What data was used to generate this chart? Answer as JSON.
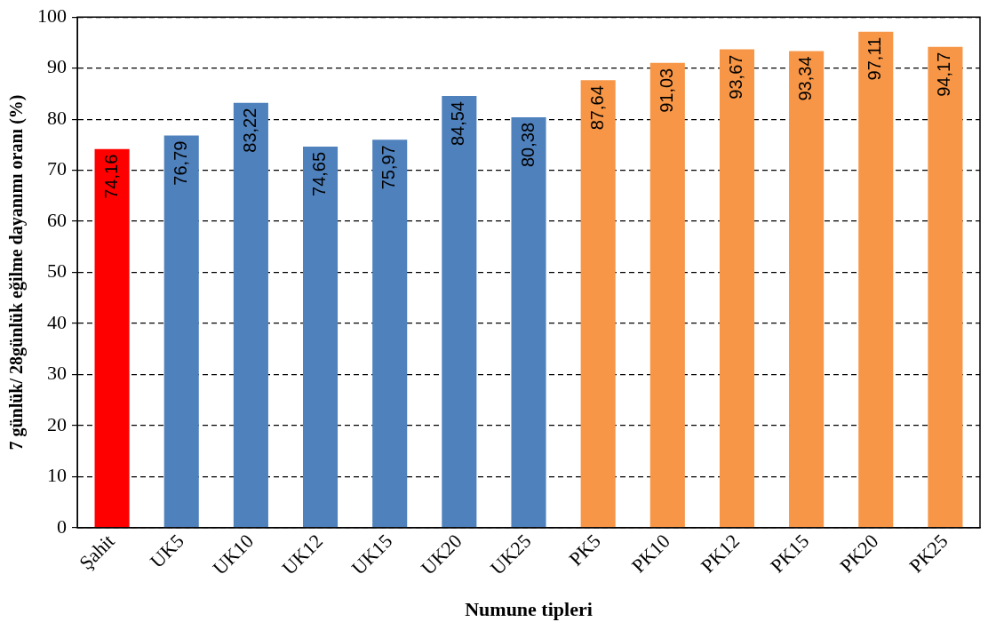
{
  "chart_data": {
    "type": "bar",
    "xlabel": "Numune tipleri",
    "ylabel": "7 günlük/ 28günlük eğilme dayanımı oranı (%)",
    "categories": [
      "Şahit",
      "UK5",
      "UK10",
      "UK12",
      "UK15",
      "UK20",
      "UK25",
      "PK5",
      "PK10",
      "PK12",
      "PK15",
      "PK20",
      "PK25"
    ],
    "values": [
      74.16,
      76.79,
      83.22,
      74.65,
      75.97,
      84.54,
      80.38,
      87.64,
      91.03,
      93.67,
      93.34,
      97.11,
      94.17
    ],
    "colors": [
      "#ff0000",
      "#4f81bd",
      "#4f81bd",
      "#4f81bd",
      "#4f81bd",
      "#4f81bd",
      "#4f81bd",
      "#f79646",
      "#f79646",
      "#f79646",
      "#f79646",
      "#f79646",
      "#f79646"
    ],
    "value_labels": [
      "74,16",
      "76,79",
      "83,22",
      "74,65",
      "75,97",
      "84,54",
      "80,38",
      "87,64",
      "91,03",
      "93,67",
      "93,34",
      "97,11",
      "94,17"
    ],
    "ylim": [
      0,
      100
    ],
    "yticks": [
      0,
      10,
      20,
      30,
      40,
      50,
      60,
      70,
      80,
      90,
      100
    ],
    "grid": "y",
    "legend": false
  }
}
